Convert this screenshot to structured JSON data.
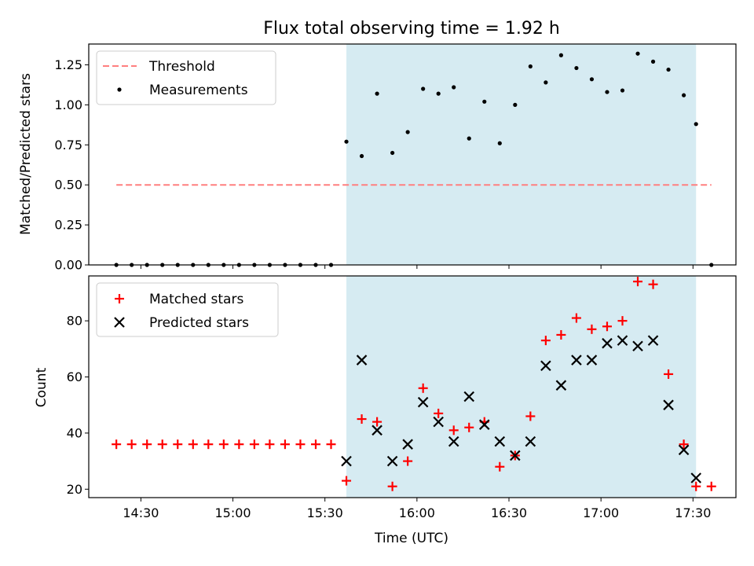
{
  "chart_data": [
    {
      "type": "scatter",
      "title": "Flux total observing time = 1.92 h",
      "xlabel": "",
      "ylabel": "Matched/Predicted stars",
      "xlim": [
        "14:13",
        "17:44"
      ],
      "ylim": [
        0,
        1.38
      ],
      "yticks": [
        "0.00",
        "0.25",
        "0.50",
        "0.75",
        "1.00",
        "1.25"
      ],
      "ytick_values": [
        0,
        0.25,
        0.5,
        0.75,
        1.0,
        1.25
      ],
      "highlight_span": [
        "15:37",
        "17:31"
      ],
      "highlight_color": "#add8e6",
      "legend_position": "upper left",
      "series": [
        {
          "name": "Threshold",
          "kind": "dashed-line",
          "color": "#ff7f7f",
          "x": [
            "14:22",
            "17:36"
          ],
          "y": [
            0.5,
            0.5
          ]
        },
        {
          "name": "Measurements",
          "kind": "dots",
          "color": "#000000",
          "x": [
            "14:22",
            "14:27",
            "14:32",
            "14:37",
            "14:42",
            "14:47",
            "14:52",
            "14:57",
            "15:02",
            "15:07",
            "15:12",
            "15:17",
            "15:22",
            "15:27",
            "15:32",
            "15:37",
            "15:42",
            "15:47",
            "15:52",
            "15:57",
            "16:02",
            "16:07",
            "16:12",
            "16:17",
            "16:22",
            "16:27",
            "16:32",
            "16:37",
            "16:42",
            "16:47",
            "16:52",
            "16:57",
            "17:02",
            "17:07",
            "17:12",
            "17:17",
            "17:22",
            "17:27",
            "17:31",
            "17:36"
          ],
          "y": [
            0,
            0,
            0,
            0,
            0,
            0,
            0,
            0,
            0,
            0,
            0,
            0,
            0,
            0,
            0,
            0.77,
            0.68,
            1.07,
            0.7,
            0.83,
            1.1,
            1.07,
            1.11,
            0.79,
            1.02,
            0.76,
            1.0,
            1.24,
            1.14,
            1.31,
            1.23,
            1.16,
            1.08,
            1.09,
            1.32,
            1.27,
            1.22,
            1.06,
            0.88,
            0
          ]
        }
      ]
    },
    {
      "type": "scatter",
      "title": "",
      "xlabel": "Time (UTC)",
      "ylabel": "Count",
      "xlim": [
        "14:13",
        "17:44"
      ],
      "ylim": [
        17,
        96
      ],
      "xticks": [
        "14:30",
        "15:00",
        "15:30",
        "16:00",
        "16:30",
        "17:00",
        "17:30"
      ],
      "yticks": [
        "20",
        "40",
        "60",
        "80"
      ],
      "ytick_values": [
        20,
        40,
        60,
        80
      ],
      "highlight_span": [
        "15:37",
        "17:31"
      ],
      "highlight_color": "#add8e6",
      "legend_position": "upper left",
      "series": [
        {
          "name": "Matched stars",
          "kind": "plus",
          "color": "#ff0000",
          "x": [
            "14:22",
            "14:27",
            "14:32",
            "14:37",
            "14:42",
            "14:47",
            "14:52",
            "14:57",
            "15:02",
            "15:07",
            "15:12",
            "15:17",
            "15:22",
            "15:27",
            "15:32",
            "15:37",
            "15:42",
            "15:47",
            "15:52",
            "15:57",
            "16:02",
            "16:07",
            "16:12",
            "16:17",
            "16:22",
            "16:27",
            "16:32",
            "16:37",
            "16:42",
            "16:47",
            "16:52",
            "16:57",
            "17:02",
            "17:07",
            "17:12",
            "17:17",
            "17:22",
            "17:27",
            "17:31",
            "17:36"
          ],
          "y": [
            36,
            36,
            36,
            36,
            36,
            36,
            36,
            36,
            36,
            36,
            36,
            36,
            36,
            36,
            36,
            23,
            45,
            44,
            21,
            30,
            56,
            47,
            41,
            42,
            44,
            28,
            32,
            46,
            73,
            75,
            81,
            77,
            78,
            80,
            94,
            93,
            61,
            36,
            21,
            21
          ]
        },
        {
          "name": "Predicted stars",
          "kind": "x",
          "color": "#000000",
          "x": [
            "15:37",
            "15:42",
            "15:47",
            "15:52",
            "15:57",
            "16:02",
            "16:07",
            "16:12",
            "16:17",
            "16:22",
            "16:27",
            "16:32",
            "16:37",
            "16:42",
            "16:47",
            "16:52",
            "16:57",
            "17:02",
            "17:07",
            "17:12",
            "17:17",
            "17:22",
            "17:27",
            "17:31"
          ],
          "y": [
            30,
            66,
            41,
            30,
            36,
            51,
            44,
            37,
            53,
            43,
            37,
            32,
            37,
            64,
            57,
            66,
            66,
            72,
            73,
            71,
            73,
            50,
            34,
            24
          ]
        }
      ]
    }
  ]
}
